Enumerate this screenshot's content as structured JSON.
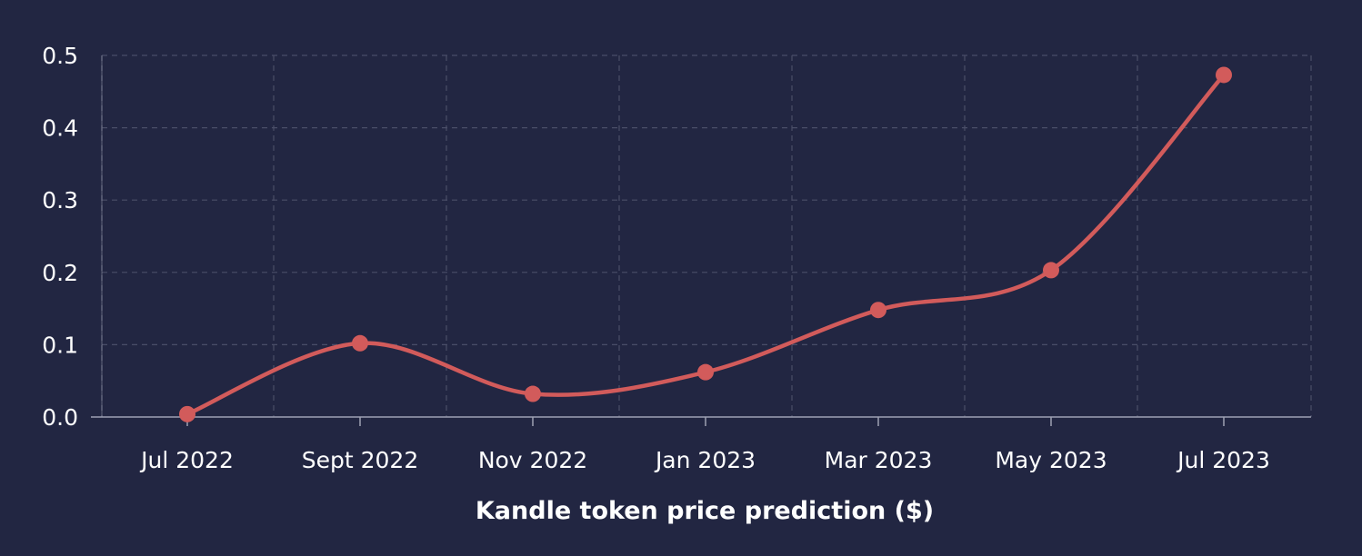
{
  "chart_data": {
    "type": "line",
    "title": "",
    "xlabel": "Kandle token price prediction ($)",
    "ylabel": "",
    "categories": [
      "Jul 2022",
      "Sept 2022",
      "Nov 2022",
      "Jan 2023",
      "Mar 2023",
      "May 2023",
      "Jul 2023"
    ],
    "series": [
      {
        "values": [
          0.004,
          0.102,
          0.032,
          0.062,
          0.148,
          0.203,
          0.473
        ],
        "color": "#d25b5b"
      }
    ],
    "ylim": [
      0,
      0.5
    ],
    "yticks": [
      "0.0",
      "0.1",
      "0.2",
      "0.3",
      "0.4",
      "0.5"
    ],
    "grid": true,
    "smooth": true,
    "legend": "none"
  }
}
